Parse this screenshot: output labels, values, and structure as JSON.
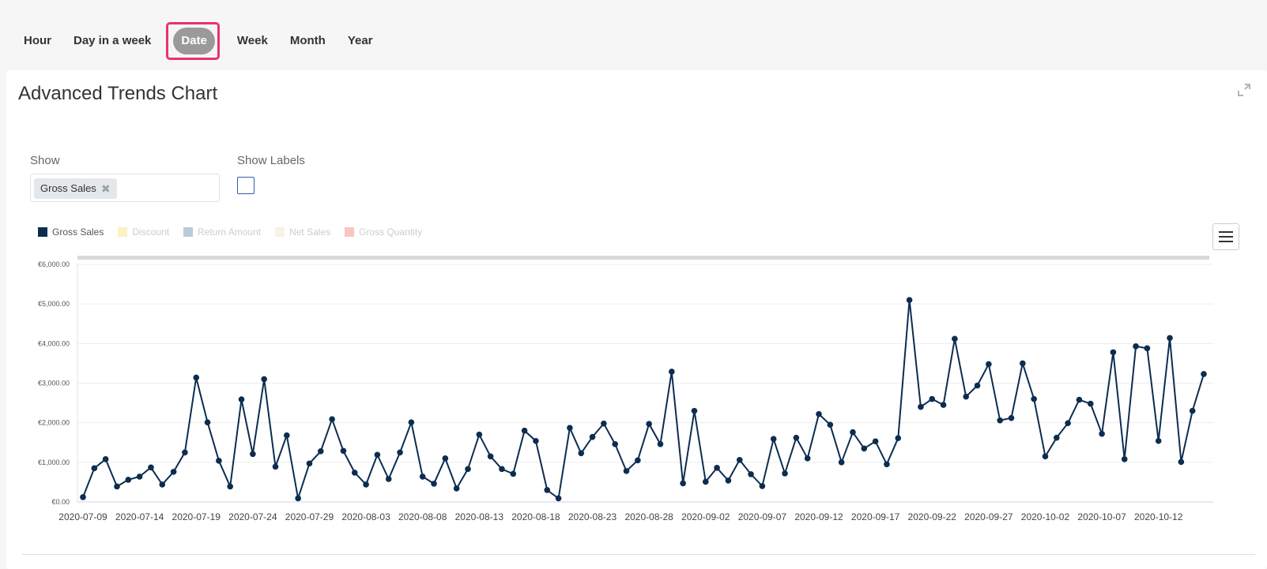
{
  "tabs": [
    {
      "label": "Hour"
    },
    {
      "label": "Day in a week"
    },
    {
      "label": "Date"
    },
    {
      "label": "Week"
    },
    {
      "label": "Month"
    },
    {
      "label": "Year"
    }
  ],
  "active_tab": "Date",
  "panel": {
    "title": "Advanced Trends Chart",
    "show_label": "Show",
    "show_chip": "Gross Sales",
    "show_labels_label": "Show Labels",
    "show_labels_checked": false
  },
  "legend": [
    {
      "label": "Gross Sales",
      "color": "#0c2d4f",
      "active": true
    },
    {
      "label": "Discount",
      "color": "#fdf0c2",
      "active": false
    },
    {
      "label": "Return Amount",
      "color": "#b9cdd9",
      "active": false
    },
    {
      "label": "Net Sales",
      "color": "#f7f3e0",
      "active": false
    },
    {
      "label": "Gross Quantity",
      "color": "#f8c6be",
      "active": false
    }
  ],
  "colors": {
    "line": "#0c2d4f",
    "highlight": "#e8336a"
  },
  "chart_data": {
    "type": "line",
    "x_start": "2020-07-09",
    "x_ticks": [
      "2020-07-09",
      "2020-07-14",
      "2020-07-19",
      "2020-07-24",
      "2020-07-29",
      "2020-08-03",
      "2020-08-08",
      "2020-08-13",
      "2020-08-18",
      "2020-08-23",
      "2020-08-28",
      "2020-09-02",
      "2020-09-07",
      "2020-09-12",
      "2020-09-17",
      "2020-09-22",
      "2020-09-27",
      "2020-10-02",
      "2020-10-07",
      "2020-10-12"
    ],
    "y_ticks": [
      "€0.00",
      "€1,000.00",
      "€2,000.00",
      "€3,000.00",
      "€4,000.00",
      "€5,000.00",
      "€6,000.00"
    ],
    "ylim": [
      0,
      6000
    ],
    "series": [
      {
        "name": "Gross Sales",
        "values": [
          120,
          850,
          1080,
          390,
          560,
          640,
          870,
          440,
          760,
          1250,
          3140,
          2010,
          1040,
          390,
          2590,
          1210,
          3100,
          890,
          1680,
          90,
          970,
          1280,
          2090,
          1290,
          740,
          440,
          1190,
          580,
          1250,
          2010,
          640,
          460,
          1100,
          340,
          830,
          1700,
          1150,
          830,
          710,
          1800,
          1540,
          300,
          90,
          1870,
          1230,
          1640,
          1980,
          1460,
          780,
          1050,
          1970,
          1460,
          3290,
          470,
          2300,
          510,
          860,
          540,
          1060,
          700,
          400,
          1590,
          720,
          1620,
          1100,
          2220,
          1950,
          1000,
          1760,
          1350,
          1530,
          950,
          1610,
          5100,
          2400,
          2600,
          2450,
          4120,
          2660,
          2940,
          3480,
          2060,
          2120,
          3500,
          2600,
          1150,
          1620,
          1990,
          2580,
          2480,
          1720,
          3780,
          1080,
          3930,
          3880,
          1540,
          4140,
          1010,
          2300,
          3230
        ]
      }
    ]
  }
}
